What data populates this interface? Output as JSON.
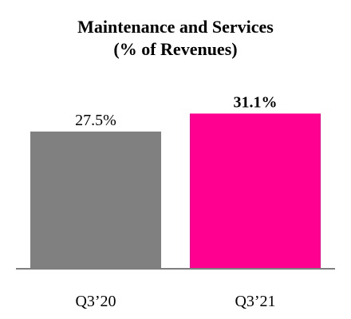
{
  "chart_data": {
    "type": "bar",
    "title_lines": [
      "Maintenance and Services",
      "(% of Revenues)"
    ],
    "categories": [
      "Q3’20",
      "Q3’21"
    ],
    "values": [
      27.5,
      31.1
    ],
    "data_labels": [
      "27.5%",
      "31.1%"
    ],
    "bar_colors": [
      "#808080",
      "#ff0090"
    ],
    "data_label_bold": [
      false,
      true
    ],
    "axis_color": "#7f7f7f",
    "xlabel": "",
    "ylabel": "",
    "ylim": [
      0,
      35
    ],
    "grid": false,
    "legend": "none"
  }
}
